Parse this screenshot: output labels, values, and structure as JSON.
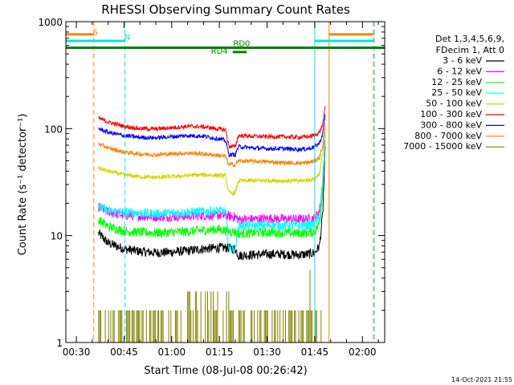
{
  "chart_data": {
    "type": "line",
    "title": "RHESSI Observing Summary Count Rates",
    "xlabel": "Start Time (08-Jul-08 00:26:42)",
    "ylabel": "Count Rate (s⁻¹ detector⁻¹)",
    "yscale": "log",
    "ylim": [
      1,
      1000
    ],
    "xlim_minutes_after_midnight": [
      26.7,
      127
    ],
    "x_ticks": [
      {
        "label": "00:30",
        "t": 30
      },
      {
        "label": "00:45",
        "t": 45
      },
      {
        "label": "01:00",
        "t": 60
      },
      {
        "label": "01:15",
        "t": 75
      },
      {
        "label": "01:30",
        "t": 90
      },
      {
        "label": "01:45",
        "t": 105
      },
      {
        "label": "02:00",
        "t": 120
      }
    ],
    "y_ticks": [
      {
        "label": "1",
        "v": 1
      },
      {
        "label": "10",
        "v": 10
      },
      {
        "label": "100",
        "v": 100
      },
      {
        "label": "1000",
        "v": 1000
      }
    ],
    "legend": {
      "placement": "right",
      "header": [
        "Det 1,3,4,5,6,9,",
        "FDecim 1, Att 0"
      ]
    },
    "annotations": [
      {
        "label": "S",
        "t": 36,
        "v": 750,
        "color": "#ff8000"
      },
      {
        "label": "N",
        "t": 46,
        "v": 680,
        "color": "#00e6e6"
      },
      {
        "label": "RD0",
        "t": 82,
        "v": 590,
        "color": "#008000"
      },
      {
        "label": "RD4",
        "t": 75,
        "v": 500,
        "color": "#008000"
      }
    ],
    "state_bars": [
      {
        "name": "S",
        "color": "#ff8000",
        "v": 760,
        "segments": [
          [
            26.7,
            35.5
          ],
          [
            109.5,
            123.5
          ]
        ]
      },
      {
        "name": "N",
        "color": "#00e6e6",
        "v": 660,
        "segments": [
          [
            26.7,
            45.3
          ],
          [
            105,
            123.5
          ]
        ]
      },
      {
        "name": "RD0",
        "color": "#008000",
        "v": 570,
        "segments": [
          [
            26.7,
            127
          ]
        ]
      },
      {
        "name": "RD4",
        "color": "#008000",
        "v": 520,
        "segments": [
          [
            79.2,
            83.6
          ]
        ]
      }
    ],
    "markers": [
      {
        "t": 35.5,
        "color": "#ff8000",
        "style": "dashed"
      },
      {
        "t": 45.3,
        "color": "#00e6e6",
        "style": "dashed"
      },
      {
        "t": 105,
        "color": "#00e6e6",
        "style": "solid"
      },
      {
        "t": 109.5,
        "color": "#ff8000",
        "style": "solid"
      },
      {
        "t": 123.5,
        "color": "#ff8000",
        "style": "dashed"
      },
      {
        "t": 123.7,
        "color": "#00e6e6",
        "style": "dashed"
      }
    ],
    "series": [
      {
        "name": "3 - 6 keV",
        "color": "#000000",
        "x": [
          37,
          40,
          45,
          50,
          55,
          60,
          65,
          70,
          75,
          77,
          80,
          81,
          85,
          90,
          95,
          100,
          103,
          105,
          106.5,
          107.5,
          108.3
        ],
        "y": [
          10.5,
          8.5,
          7.5,
          7.1,
          6.9,
          7,
          7.2,
          7.5,
          7.7,
          7.7,
          7.5,
          6.5,
          6.6,
          6.7,
          6.7,
          6.6,
          6.7,
          6.9,
          8,
          16,
          65
        ]
      },
      {
        "name": "6 - 12 keV",
        "color": "#ff00ff",
        "x": [
          37,
          40,
          45,
          50,
          55,
          60,
          65,
          70,
          75,
          77,
          80,
          81,
          85,
          90,
          95,
          100,
          103,
          105,
          106.5,
          107.5,
          108.3
        ],
        "y": [
          18.5,
          16.5,
          15.5,
          15.2,
          15,
          15,
          15.2,
          15.4,
          15.5,
          15.3,
          15,
          14.1,
          14.2,
          14.4,
          14.3,
          14.2,
          14.3,
          14.6,
          17,
          33,
          90
        ]
      },
      {
        "name": "12 - 25 keV",
        "color": "#00ff00",
        "x": [
          37,
          40,
          45,
          50,
          55,
          60,
          65,
          70,
          75,
          77,
          80,
          81,
          85,
          90,
          95,
          100,
          103,
          105,
          106.5,
          107.5,
          108.3
        ],
        "y": [
          14,
          12.2,
          11,
          10.7,
          10.6,
          10.7,
          10.9,
          11.2,
          11.4,
          11.1,
          10.8,
          10.4,
          10.5,
          10.7,
          10.6,
          10.5,
          10.6,
          10.9,
          13,
          27,
          80
        ]
      },
      {
        "name": "25 - 50 keV",
        "color": "#00ffff",
        "x": [
          37,
          40,
          45,
          50,
          55,
          60,
          65,
          70,
          75,
          77,
          78,
          80,
          81,
          85,
          90,
          95,
          100,
          103,
          105,
          106.5,
          107.5,
          108.3
        ],
        "y": [
          18.5,
          17,
          16.5,
          16.2,
          16,
          16.2,
          16.5,
          16.8,
          17,
          16.8,
          7.5,
          7.5,
          12.5,
          12.4,
          12.5,
          12.5,
          12.4,
          12.5,
          12.8,
          15,
          30,
          85
        ]
      },
      {
        "name": "50 - 100 keV",
        "color": "#d4d400",
        "x": [
          37,
          40,
          45,
          50,
          55,
          60,
          65,
          70,
          75,
          77,
          78,
          80,
          81,
          85,
          90,
          95,
          100,
          103,
          105,
          106.5,
          107.5,
          108.3
        ],
        "y": [
          43,
          40,
          37,
          35.5,
          35,
          35.5,
          36.5,
          37,
          36.5,
          36,
          25,
          25,
          32.5,
          32.5,
          32.8,
          32.5,
          32.5,
          33,
          34,
          38,
          60,
          100
        ]
      },
      {
        "name": "100 - 300 keV",
        "color": "#ff0000",
        "x": [
          37,
          40,
          45,
          50,
          55,
          60,
          65,
          70,
          75,
          77,
          78,
          80,
          81,
          85,
          90,
          95,
          100,
          103,
          105,
          106.5,
          107.5,
          108.3
        ],
        "y": [
          125,
          115,
          105,
          100,
          99,
          102,
          105,
          104,
          99,
          97,
          68,
          68,
          86,
          85,
          84,
          84,
          83,
          84,
          87,
          92,
          110,
          160
        ]
      },
      {
        "name": "300 - 800 keV",
        "color": "#0000ff",
        "x": [
          37,
          40,
          45,
          50,
          55,
          60,
          65,
          70,
          75,
          77,
          78,
          80,
          81,
          85,
          90,
          95,
          100,
          103,
          105,
          106.5,
          107.5,
          108.3
        ],
        "y": [
          100,
          92,
          86,
          83,
          82,
          84,
          86,
          85,
          80,
          77,
          57,
          57,
          68,
          66,
          65,
          65,
          64,
          65,
          68,
          73,
          90,
          135
        ]
      },
      {
        "name": "800 - 7000 keV",
        "color": "#ff8000",
        "x": [
          37,
          40,
          45,
          50,
          55,
          60,
          65,
          70,
          75,
          77,
          78,
          80,
          81,
          85,
          90,
          95,
          100,
          103,
          105,
          106.5,
          107.5,
          108.3
        ],
        "y": [
          72,
          66,
          60,
          58,
          57,
          58,
          59,
          58,
          56,
          55,
          46,
          46,
          50,
          49.5,
          49,
          48,
          47.5,
          48,
          50,
          54,
          70,
          110
        ]
      },
      {
        "name": "7000 - 15000 keV",
        "color": "#808000",
        "x": [
          37,
          40,
          45,
          50,
          55,
          60,
          65,
          70,
          72,
          75,
          78,
          80,
          85,
          90,
          95,
          100,
          104,
          107
        ],
        "y": [
          2,
          2,
          2,
          2,
          2,
          2,
          3,
          3,
          3,
          3,
          2,
          2,
          2,
          2,
          2,
          2,
          2,
          2
        ]
      }
    ]
  },
  "footer": {
    "timestamp": "14-Oct-2021 21:55"
  }
}
